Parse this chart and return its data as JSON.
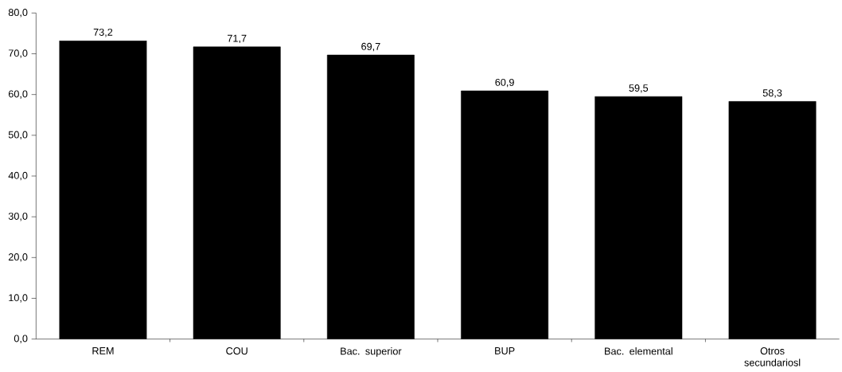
{
  "chart_data": {
    "type": "bar",
    "categories": [
      "REM",
      "COU",
      "Bac. superior",
      "BUP",
      "Bac. elemental",
      "Otros secundariosl"
    ],
    "values": [
      73.2,
      71.7,
      69.7,
      60.9,
      59.5,
      58.3
    ],
    "value_labels": [
      "73,2",
      "71,7",
      "69,7",
      "60,9",
      "59,5",
      "58,3"
    ],
    "color": "#000000",
    "ylim": [
      0,
      80
    ],
    "yticks": [
      {
        "value": 0,
        "label": "0,0"
      },
      {
        "value": 10,
        "label": "10,0"
      },
      {
        "value": 20,
        "label": "20,0"
      },
      {
        "value": 30,
        "label": "30,0"
      },
      {
        "value": 40,
        "label": "40,0"
      },
      {
        "value": 50,
        "label": "50,0"
      },
      {
        "value": 60,
        "label": "60,0"
      },
      {
        "value": 70,
        "label": "70,0"
      },
      {
        "value": 80,
        "label": "80,0"
      }
    ],
    "grid": false
  }
}
